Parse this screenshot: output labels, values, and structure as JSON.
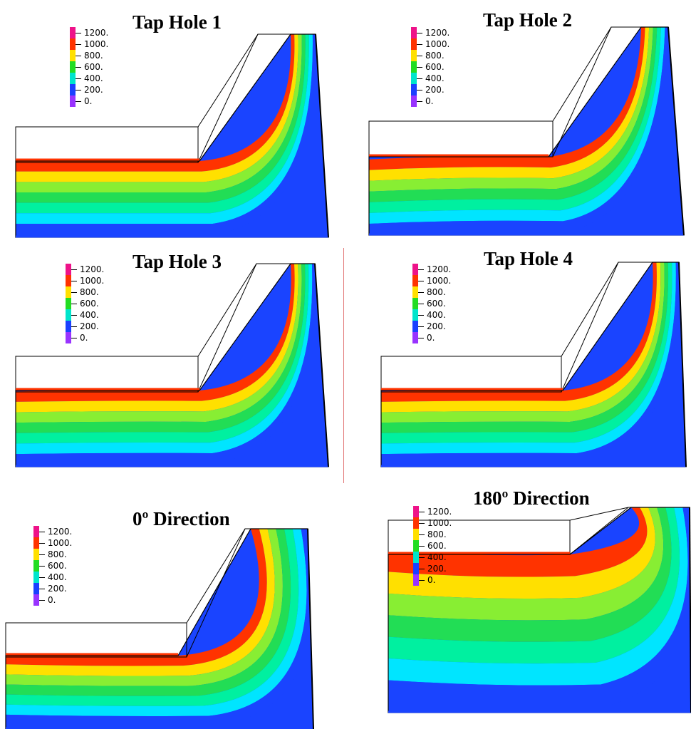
{
  "legend_levels": [
    {
      "label": "1200.",
      "color": "#ee1289"
    },
    {
      "label": "1000.",
      "color": "#ff3300"
    },
    {
      "label": "800.",
      "color": "#ffe000"
    },
    {
      "label": "600.",
      "color": "#22dd22"
    },
    {
      "label": "400.",
      "color": "#00e5cc"
    },
    {
      "label": "200.",
      "color": "#1a40ff"
    },
    {
      "label": "0.",
      "color": "#9933ff"
    }
  ],
  "band_colors": [
    "#ff3300",
    "#ffe000",
    "#88ee33",
    "#22dd55",
    "#00f0a0",
    "#00e5ff",
    "#1a44ff"
  ],
  "panels": [
    {
      "title": "Tap Hole 1"
    },
    {
      "title": "Tap Hole 2"
    },
    {
      "title": "Tap Hole 3"
    },
    {
      "title": "Tap Hole 4"
    },
    {
      "title": "0º Direction"
    },
    {
      "title": "180º Direction"
    }
  ]
}
